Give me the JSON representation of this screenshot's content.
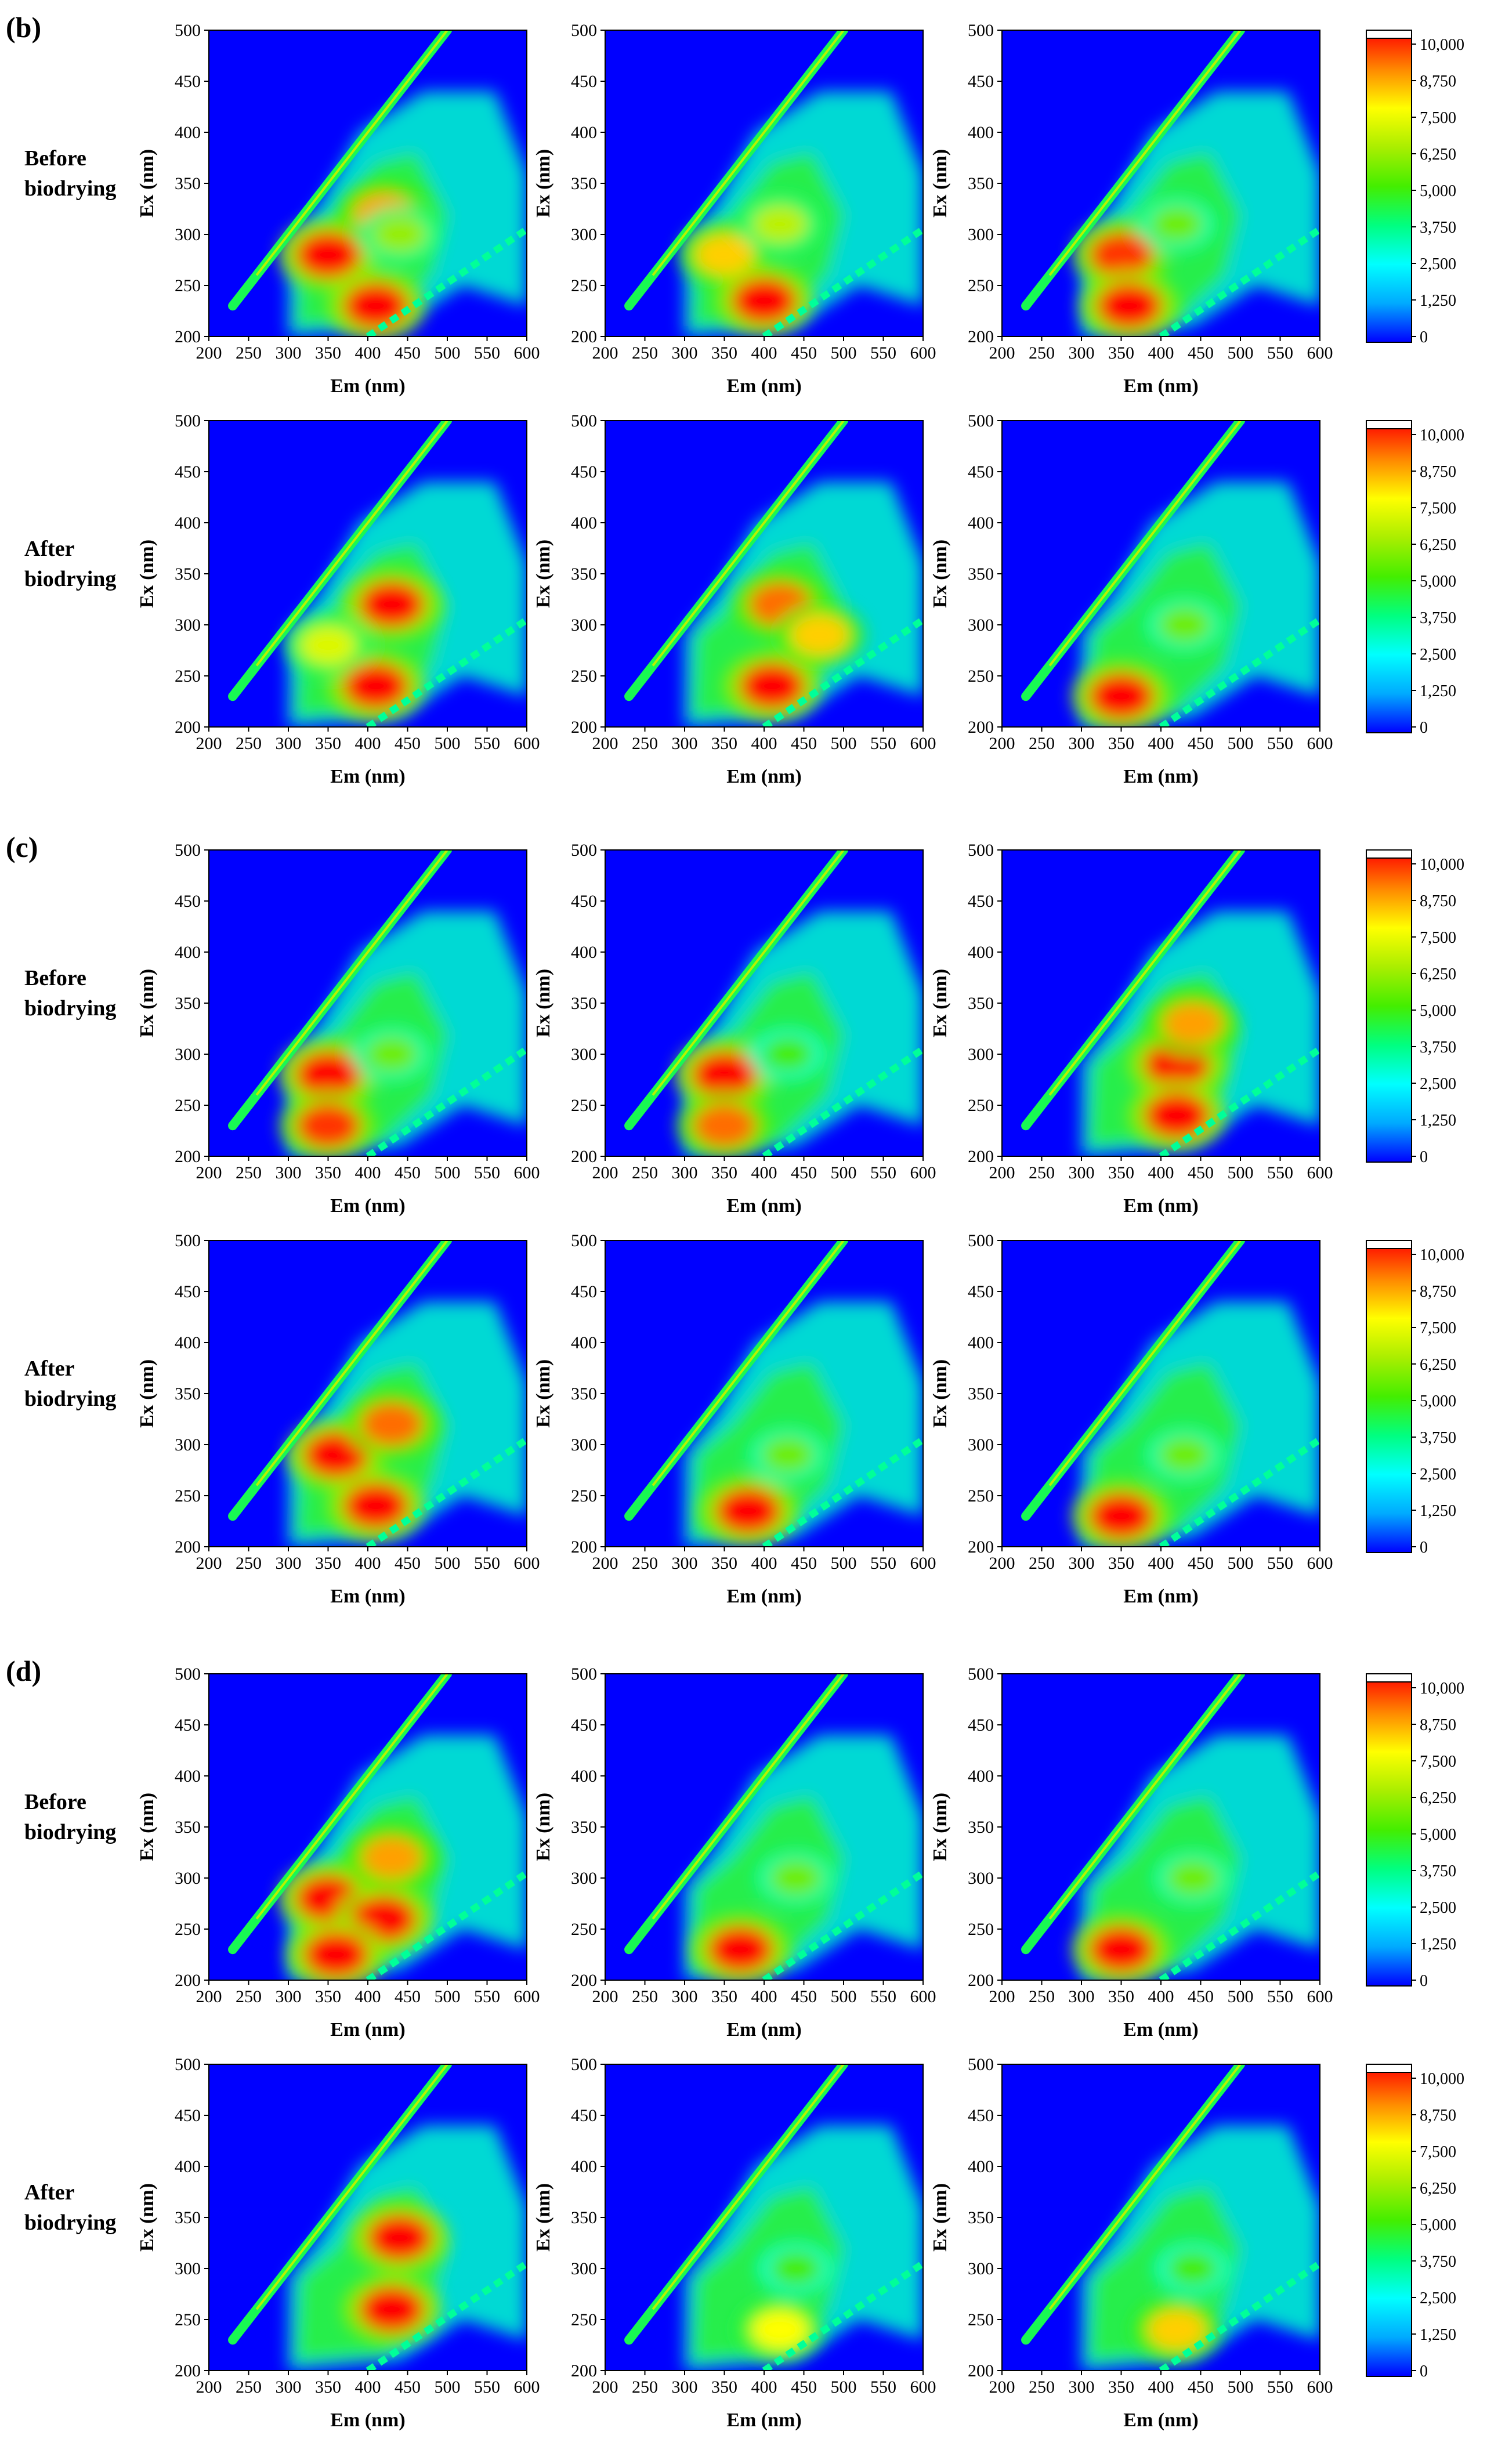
{
  "figure": {
    "panels": [
      {
        "label": "(b)",
        "rows": [
          "Before biodrying",
          "After biodrying"
        ]
      },
      {
        "label": "(c)",
        "rows": [
          "Before biodrying",
          "After biodrying"
        ]
      },
      {
        "label": "(d)",
        "rows": [
          "Before biodrying",
          "After biodrying"
        ]
      }
    ]
  },
  "chart_data": {
    "type": "heatmap",
    "subtype": "EEM fluorescence contour",
    "xlabel": "Em (nm)",
    "ylabel": "Ex (nm)",
    "xlim": [
      200,
      600
    ],
    "ylim": [
      200,
      500
    ],
    "xticks": [
      200,
      250,
      300,
      350,
      400,
      450,
      500,
      550,
      600
    ],
    "yticks": [
      200,
      250,
      300,
      350,
      400,
      450,
      500
    ],
    "colorbar": {
      "min": 0,
      "max": 10000,
      "ticks": [
        "0",
        "1,250",
        "2,500",
        "3,750",
        "5,000",
        "6,250",
        "7,500",
        "8,750",
        "10,000"
      ],
      "colors": [
        "#0000ff",
        "#00aaff",
        "#00ffff",
        "#00ff80",
        "#44ee00",
        "#aaee00",
        "#ffff00",
        "#ff8800",
        "#ff0000"
      ]
    },
    "maps": [
      {
        "panel": "(b)",
        "row": "Before biodrying",
        "col": 1,
        "peaks": [
          {
            "em": 350,
            "ex": 280,
            "intensity": 10000
          },
          {
            "em": 410,
            "ex": 230,
            "intensity": 10000
          },
          {
            "em": 420,
            "ex": 320,
            "intensity": 8500
          },
          {
            "em": 440,
            "ex": 300,
            "intensity": 6000
          }
        ]
      },
      {
        "panel": "(b)",
        "row": "Before biodrying",
        "col": 2,
        "peaks": [
          {
            "em": 350,
            "ex": 280,
            "intensity": 8000
          },
          {
            "em": 400,
            "ex": 235,
            "intensity": 10000
          },
          {
            "em": 420,
            "ex": 310,
            "intensity": 6500
          }
        ]
      },
      {
        "panel": "(b)",
        "row": "Before biodrying",
        "col": 3,
        "peaks": [
          {
            "em": 350,
            "ex": 280,
            "intensity": 9500
          },
          {
            "em": 360,
            "ex": 230,
            "intensity": 10000
          },
          {
            "em": 420,
            "ex": 310,
            "intensity": 5500
          }
        ]
      },
      {
        "panel": "(b)",
        "row": "After biodrying",
        "col": 1,
        "peaks": [
          {
            "em": 430,
            "ex": 320,
            "intensity": 10000
          },
          {
            "em": 410,
            "ex": 240,
            "intensity": 10000
          },
          {
            "em": 350,
            "ex": 280,
            "intensity": 7000
          }
        ]
      },
      {
        "panel": "(b)",
        "row": "After biodrying",
        "col": 2,
        "peaks": [
          {
            "em": 420,
            "ex": 320,
            "intensity": 9000
          },
          {
            "em": 410,
            "ex": 240,
            "intensity": 10000
          },
          {
            "em": 470,
            "ex": 290,
            "intensity": 8000
          }
        ]
      },
      {
        "panel": "(b)",
        "row": "After biodrying",
        "col": 3,
        "peaks": [
          {
            "em": 350,
            "ex": 230,
            "intensity": 10000
          },
          {
            "em": 430,
            "ex": 300,
            "intensity": 5500
          }
        ]
      },
      {
        "panel": "(c)",
        "row": "Before biodrying",
        "col": 1,
        "peaks": [
          {
            "em": 350,
            "ex": 280,
            "intensity": 10000
          },
          {
            "em": 350,
            "ex": 230,
            "intensity": 9500
          },
          {
            "em": 430,
            "ex": 300,
            "intensity": 5500
          }
        ]
      },
      {
        "panel": "(c)",
        "row": "Before biodrying",
        "col": 2,
        "peaks": [
          {
            "em": 350,
            "ex": 280,
            "intensity": 10000
          },
          {
            "em": 350,
            "ex": 230,
            "intensity": 9000
          },
          {
            "em": 430,
            "ex": 300,
            "intensity": 5000
          }
        ]
      },
      {
        "panel": "(c)",
        "row": "Before biodrying",
        "col": 3,
        "peaks": [
          {
            "em": 420,
            "ex": 290,
            "intensity": 10000
          },
          {
            "em": 420,
            "ex": 240,
            "intensity": 10000
          },
          {
            "em": 440,
            "ex": 330,
            "intensity": 8500
          }
        ]
      },
      {
        "panel": "(c)",
        "row": "After biodrying",
        "col": 1,
        "peaks": [
          {
            "em": 360,
            "ex": 290,
            "intensity": 10000
          },
          {
            "em": 410,
            "ex": 240,
            "intensity": 10000
          },
          {
            "em": 430,
            "ex": 320,
            "intensity": 9000
          }
        ]
      },
      {
        "panel": "(c)",
        "row": "After biodrying",
        "col": 2,
        "peaks": [
          {
            "em": 380,
            "ex": 235,
            "intensity": 10000
          },
          {
            "em": 430,
            "ex": 290,
            "intensity": 5500
          }
        ]
      },
      {
        "panel": "(c)",
        "row": "After biodrying",
        "col": 3,
        "peaks": [
          {
            "em": 350,
            "ex": 230,
            "intensity": 10000
          },
          {
            "em": 430,
            "ex": 290,
            "intensity": 5500
          }
        ]
      },
      {
        "panel": "(d)",
        "row": "Before biodrying",
        "col": 1,
        "peaks": [
          {
            "em": 350,
            "ex": 280,
            "intensity": 10000
          },
          {
            "em": 420,
            "ex": 260,
            "intensity": 10000
          },
          {
            "em": 360,
            "ex": 225,
            "intensity": 10000
          },
          {
            "em": 430,
            "ex": 320,
            "intensity": 8500
          }
        ]
      },
      {
        "panel": "(d)",
        "row": "Before biodrying",
        "col": 2,
        "peaks": [
          {
            "em": 370,
            "ex": 230,
            "intensity": 10000
          },
          {
            "em": 440,
            "ex": 300,
            "intensity": 5500
          }
        ]
      },
      {
        "panel": "(d)",
        "row": "Before biodrying",
        "col": 3,
        "peaks": [
          {
            "em": 350,
            "ex": 230,
            "intensity": 10000
          },
          {
            "em": 440,
            "ex": 300,
            "intensity": 5500
          }
        ]
      },
      {
        "panel": "(d)",
        "row": "After biodrying",
        "col": 1,
        "peaks": [
          {
            "em": 440,
            "ex": 330,
            "intensity": 10000
          },
          {
            "em": 430,
            "ex": 260,
            "intensity": 10000
          }
        ]
      },
      {
        "panel": "(d)",
        "row": "After biodrying",
        "col": 2,
        "peaks": [
          {
            "em": 420,
            "ex": 240,
            "intensity": 7500
          },
          {
            "em": 440,
            "ex": 300,
            "intensity": 5000
          }
        ]
      },
      {
        "panel": "(d)",
        "row": "After biodrying",
        "col": 3,
        "peaks": [
          {
            "em": 420,
            "ex": 240,
            "intensity": 8000
          },
          {
            "em": 440,
            "ex": 300,
            "intensity": 5000
          }
        ]
      }
    ]
  }
}
